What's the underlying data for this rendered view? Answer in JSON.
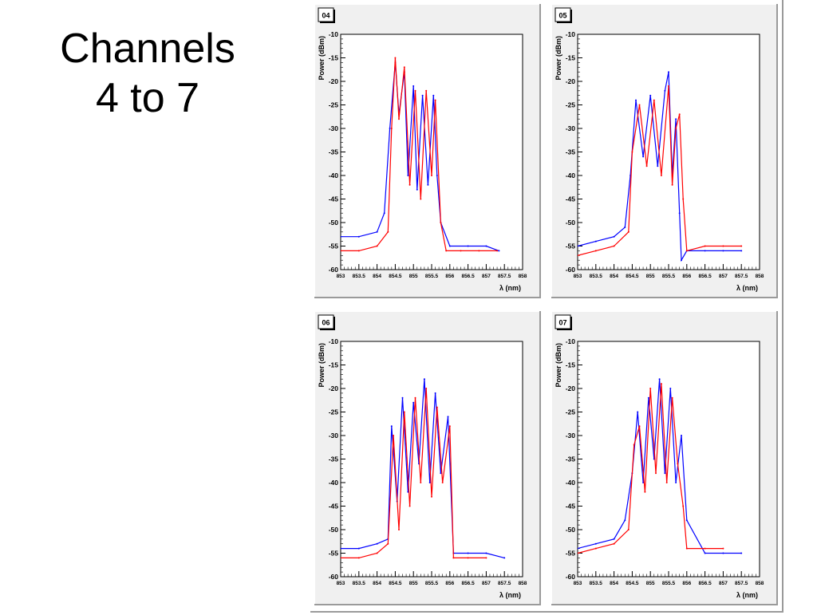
{
  "slide": {
    "title_line1": "Channels",
    "title_line2": "4 to 7"
  },
  "chart_data": [
    {
      "type": "line",
      "channel_label": "04",
      "xlabel": "λ (nm)",
      "ylabel": "Power (dBm)",
      "xlim": [
        853,
        858
      ],
      "ylim": [
        -60,
        -10
      ],
      "xticks": [
        "853",
        "853.5",
        "854",
        "854.5",
        "855",
        "855.5",
        "856",
        "856.5",
        "857",
        "857.5",
        "858"
      ],
      "yticks": [
        "-10",
        "-15",
        "-20",
        "-25",
        "-30",
        "-35",
        "-40",
        "-45",
        "-50",
        "-55",
        "-60"
      ],
      "grid": false,
      "series": [
        {
          "color": "#0000ff",
          "x": [
            853.0,
            853.5,
            854.0,
            854.2,
            854.35,
            854.5,
            854.6,
            854.75,
            854.85,
            855.0,
            855.1,
            855.25,
            855.4,
            855.55,
            855.65,
            855.75,
            856.0,
            856.5,
            857.0,
            857.35
          ],
          "y": [
            -53,
            -53,
            -52,
            -48,
            -30,
            -16,
            -27,
            -18,
            -40,
            -21,
            -43,
            -23,
            -42,
            -23,
            -40,
            -50,
            -55,
            -55,
            -55,
            -56
          ]
        },
        {
          "color": "#ff0000",
          "x": [
            853.0,
            853.5,
            854.0,
            854.3,
            854.4,
            854.5,
            854.6,
            854.75,
            854.9,
            855.05,
            855.2,
            855.35,
            855.5,
            855.6,
            855.75,
            855.9,
            856.3,
            856.8,
            857.3
          ],
          "y": [
            -56,
            -56,
            -55,
            -52,
            -30,
            -15,
            -28,
            -17,
            -42,
            -22,
            -45,
            -22,
            -40,
            -24,
            -50,
            -56,
            -56,
            -56,
            -56
          ]
        }
      ]
    },
    {
      "type": "line",
      "channel_label": "05",
      "xlabel": "λ (nm)",
      "ylabel": "Power (dBm)",
      "xlim": [
        853,
        858
      ],
      "ylim": [
        -60,
        -10
      ],
      "xticks": [
        "853",
        "853.5",
        "854",
        "854.5",
        "855",
        "855.5",
        "856",
        "856.5",
        "857",
        "857.5",
        "858"
      ],
      "yticks": [
        "-10",
        "-15",
        "-20",
        "-25",
        "-30",
        "-35",
        "-40",
        "-45",
        "-50",
        "-55",
        "-60"
      ],
      "grid": false,
      "series": [
        {
          "color": "#0000ff",
          "x": [
            853.0,
            853.5,
            854.0,
            854.3,
            854.45,
            854.6,
            854.8,
            855.0,
            855.2,
            855.4,
            855.5,
            855.6,
            855.7,
            855.8,
            855.85,
            856.0,
            856.5,
            857.0,
            857.5
          ],
          "y": [
            -55,
            -54,
            -53,
            -51,
            -40,
            -24,
            -36,
            -23,
            -38,
            -22,
            -18,
            -40,
            -28,
            -48,
            -58,
            -56,
            -56,
            -56,
            -56
          ]
        },
        {
          "color": "#ff0000",
          "x": [
            853.0,
            853.5,
            854.0,
            854.4,
            854.5,
            854.7,
            854.9,
            855.1,
            855.3,
            855.5,
            855.6,
            855.7,
            855.8,
            855.9,
            856.0,
            856.5,
            857.0,
            857.5
          ],
          "y": [
            -57,
            -56,
            -55,
            -52,
            -35,
            -25,
            -38,
            -24,
            -40,
            -21,
            -42,
            -30,
            -27,
            -45,
            -56,
            -55,
            -55,
            -55
          ]
        }
      ]
    },
    {
      "type": "line",
      "channel_label": "06",
      "xlabel": "λ (nm)",
      "ylabel": "Power (dBm)",
      "xlim": [
        853,
        858
      ],
      "ylim": [
        -60,
        -10
      ],
      "xticks": [
        "853",
        "853.5",
        "854",
        "854.5",
        "855",
        "855.5",
        "856",
        "856.5",
        "857",
        "857.5",
        "858"
      ],
      "yticks": [
        "-10",
        "-15",
        "-20",
        "-25",
        "-30",
        "-35",
        "-40",
        "-45",
        "-50",
        "-55",
        "-60"
      ],
      "grid": false,
      "series": [
        {
          "color": "#0000ff",
          "x": [
            853.0,
            853.5,
            854.0,
            854.3,
            854.4,
            854.55,
            854.7,
            854.85,
            855.0,
            855.15,
            855.3,
            855.45,
            855.6,
            855.75,
            855.95,
            856.1,
            856.5,
            857.0,
            857.5
          ],
          "y": [
            -54,
            -54,
            -53,
            -52,
            -28,
            -44,
            -22,
            -42,
            -23,
            -36,
            -18,
            -40,
            -21,
            -38,
            -26,
            -55,
            -55,
            -55,
            -56
          ]
        },
        {
          "color": "#ff0000",
          "x": [
            853.0,
            853.5,
            854.0,
            854.3,
            854.45,
            854.6,
            854.75,
            854.9,
            855.05,
            855.2,
            855.35,
            855.5,
            855.65,
            855.8,
            856.0,
            856.1,
            856.5,
            857.0
          ],
          "y": [
            -56,
            -56,
            -55,
            -53,
            -30,
            -50,
            -25,
            -45,
            -22,
            -40,
            -20,
            -43,
            -24,
            -40,
            -28,
            -56,
            -56,
            -56
          ]
        }
      ]
    },
    {
      "type": "line",
      "channel_label": "07",
      "xlabel": "λ (nm)",
      "ylabel": "Power (dBm)",
      "xlim": [
        853,
        858
      ],
      "ylim": [
        -60,
        -10
      ],
      "xticks": [
        "853",
        "853.5",
        "854",
        "854.5",
        "855",
        "855.5",
        "856",
        "856.5",
        "857",
        "857.5",
        "858"
      ],
      "yticks": [
        "-10",
        "-15",
        "-20",
        "-25",
        "-30",
        "-35",
        "-40",
        "-45",
        "-50",
        "-55",
        "-60"
      ],
      "grid": false,
      "series": [
        {
          "color": "#0000ff",
          "x": [
            853.0,
            853.5,
            854.0,
            854.3,
            854.5,
            854.65,
            854.8,
            854.95,
            855.1,
            855.25,
            855.4,
            855.55,
            855.7,
            855.85,
            856.0,
            856.5,
            857.0,
            857.5
          ],
          "y": [
            -54,
            -53,
            -52,
            -48,
            -38,
            -25,
            -40,
            -22,
            -35,
            -18,
            -38,
            -20,
            -40,
            -30,
            -48,
            -55,
            -55,
            -55
          ]
        },
        {
          "color": "#ff0000",
          "x": [
            853.0,
            853.5,
            854.0,
            854.4,
            854.55,
            854.7,
            854.85,
            855.0,
            855.15,
            855.3,
            855.45,
            855.6,
            855.75,
            855.9,
            856.0,
            856.5,
            857.0
          ],
          "y": [
            -55,
            -54,
            -53,
            -50,
            -32,
            -28,
            -42,
            -20,
            -38,
            -19,
            -40,
            -22,
            -36,
            -45,
            -54,
            -54,
            -54
          ]
        }
      ]
    }
  ]
}
